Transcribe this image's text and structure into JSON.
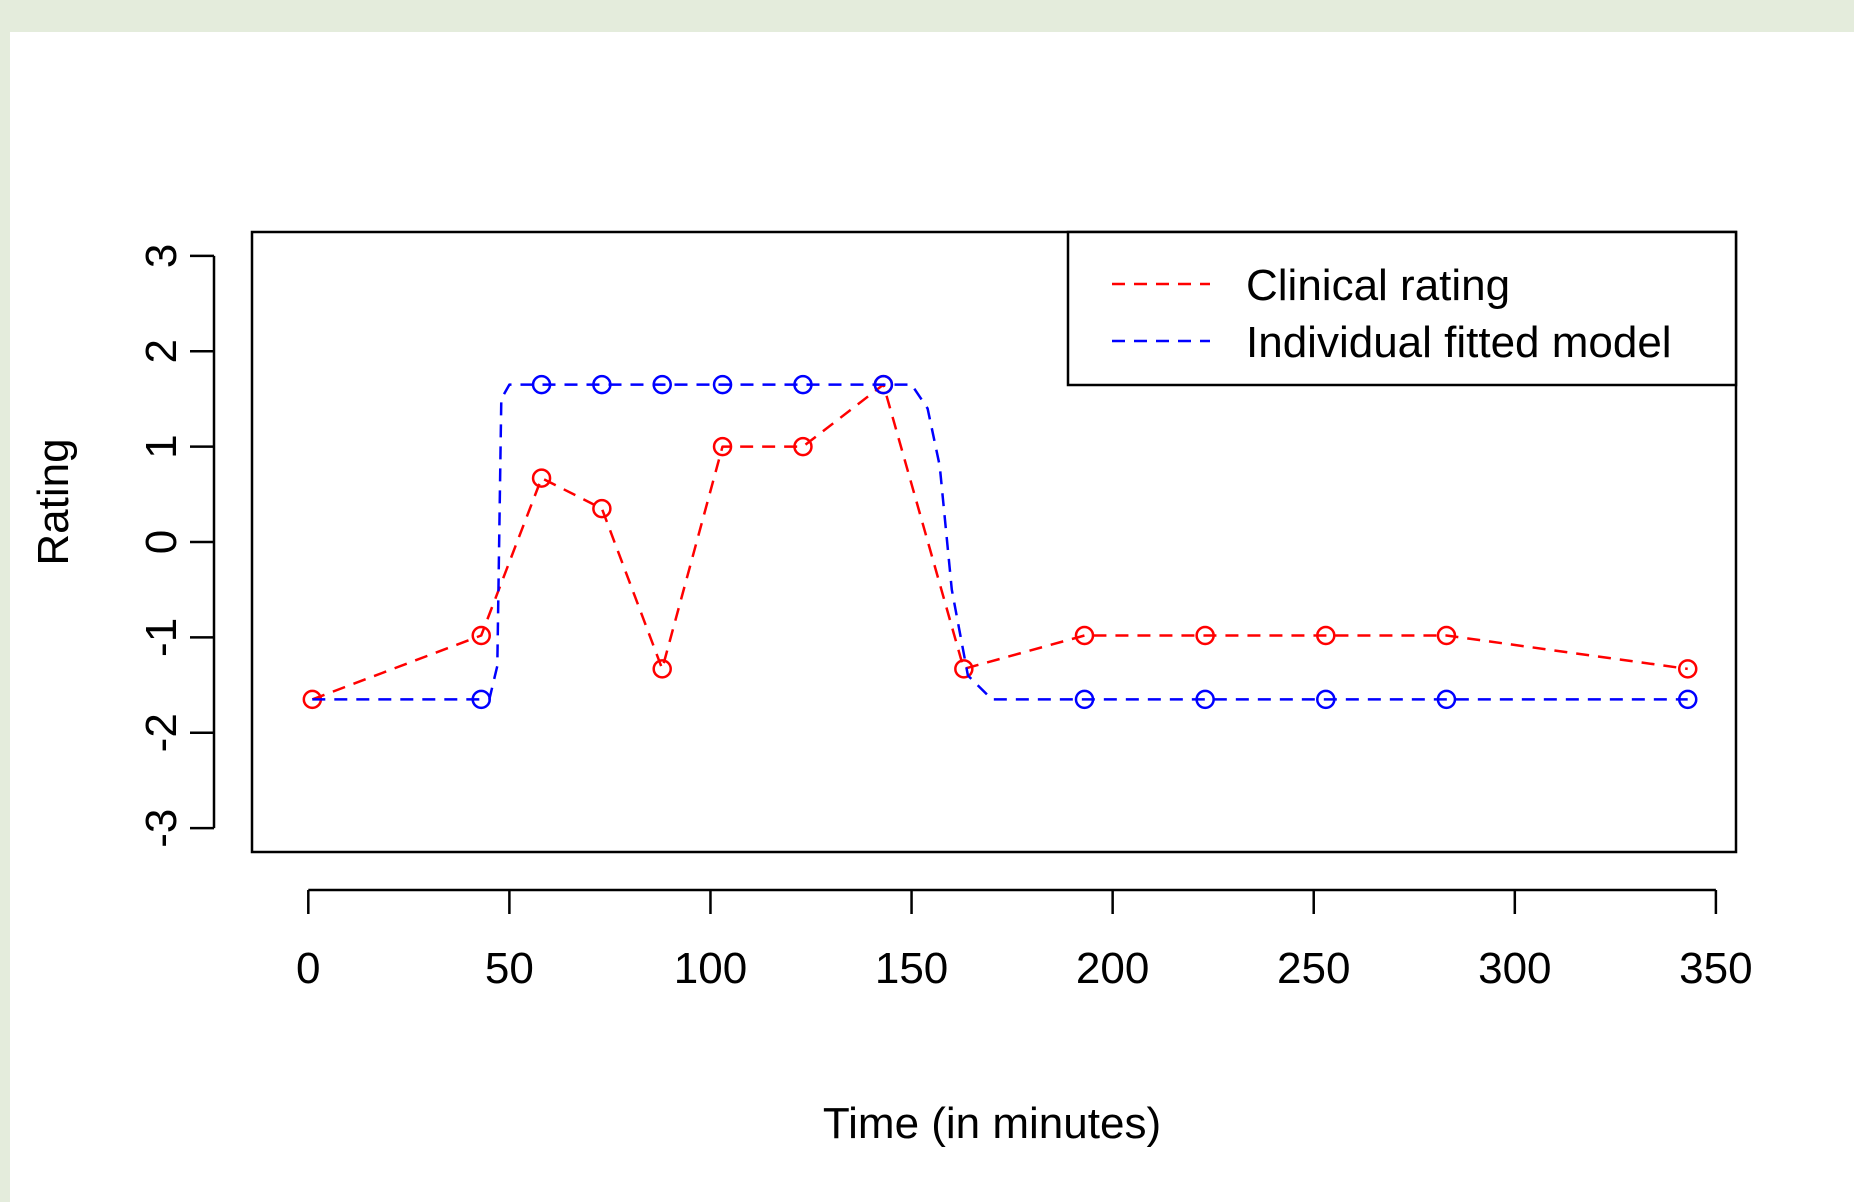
{
  "chart_data": {
    "type": "line",
    "xlabel": "Time (in minutes)",
    "ylabel": "Rating",
    "xlim": [
      -14,
      355
    ],
    "ylim": [
      -3.25,
      3.25
    ],
    "xticks": [
      0,
      50,
      100,
      150,
      200,
      250,
      300,
      350
    ],
    "xtick_labels": [
      "0",
      "50",
      "100",
      "150",
      "200",
      "250",
      "300",
      "350"
    ],
    "yticks": [
      -3,
      -2,
      -1,
      0,
      1,
      2,
      3
    ],
    "ytick_labels": [
      "-3",
      "-2",
      "-1",
      "0",
      "1",
      "2",
      "3"
    ],
    "grid": false,
    "legend": {
      "position": "top-right",
      "entries": [
        "Clinical rating",
        "Individual fitted model"
      ]
    },
    "series": [
      {
        "name": "Clinical rating",
        "color": "#ff0000",
        "line": "dashed",
        "marker": "open-circle",
        "x": [
          1,
          43,
          58,
          73,
          88,
          103,
          123,
          143,
          163,
          193,
          223,
          253,
          283,
          343
        ],
        "y": [
          -1.65,
          -0.98,
          0.67,
          0.35,
          -1.33,
          1.0,
          1.0,
          1.65,
          -1.33,
          -0.98,
          -0.98,
          -0.98,
          -0.98,
          -1.33
        ],
        "connect_path": {
          "x": [
            1,
            43,
            58,
            73,
            88,
            103,
            123,
            143,
            163,
            193,
            223,
            253,
            283,
            343
          ],
          "y": [
            -1.65,
            -0.98,
            0.67,
            0.35,
            -1.33,
            1.0,
            1.0,
            1.65,
            -1.33,
            -0.98,
            -0.98,
            -0.98,
            -0.98,
            -1.33
          ]
        }
      },
      {
        "name": "Individual fitted model",
        "color": "#0000ff",
        "line": "dashed",
        "marker": "open-circle",
        "x": [
          43,
          58,
          73,
          88,
          103,
          123,
          143,
          193,
          223,
          253,
          283,
          343
        ],
        "y": [
          -1.65,
          1.65,
          1.65,
          1.65,
          1.65,
          1.65,
          1.65,
          -1.65,
          -1.65,
          -1.65,
          -1.65,
          -1.65
        ],
        "connect_path": {
          "x": [
            1,
            45,
            47,
            48,
            50,
            58,
            73,
            88,
            103,
            123,
            143,
            150,
            154,
            157,
            160,
            164,
            170,
            193,
            343
          ],
          "y": [
            -1.65,
            -1.65,
            -1.3,
            1.5,
            1.65,
            1.65,
            1.65,
            1.65,
            1.65,
            1.65,
            1.65,
            1.65,
            1.4,
            0.8,
            -0.5,
            -1.4,
            -1.65,
            -1.65,
            -1.65
          ]
        }
      }
    ]
  }
}
